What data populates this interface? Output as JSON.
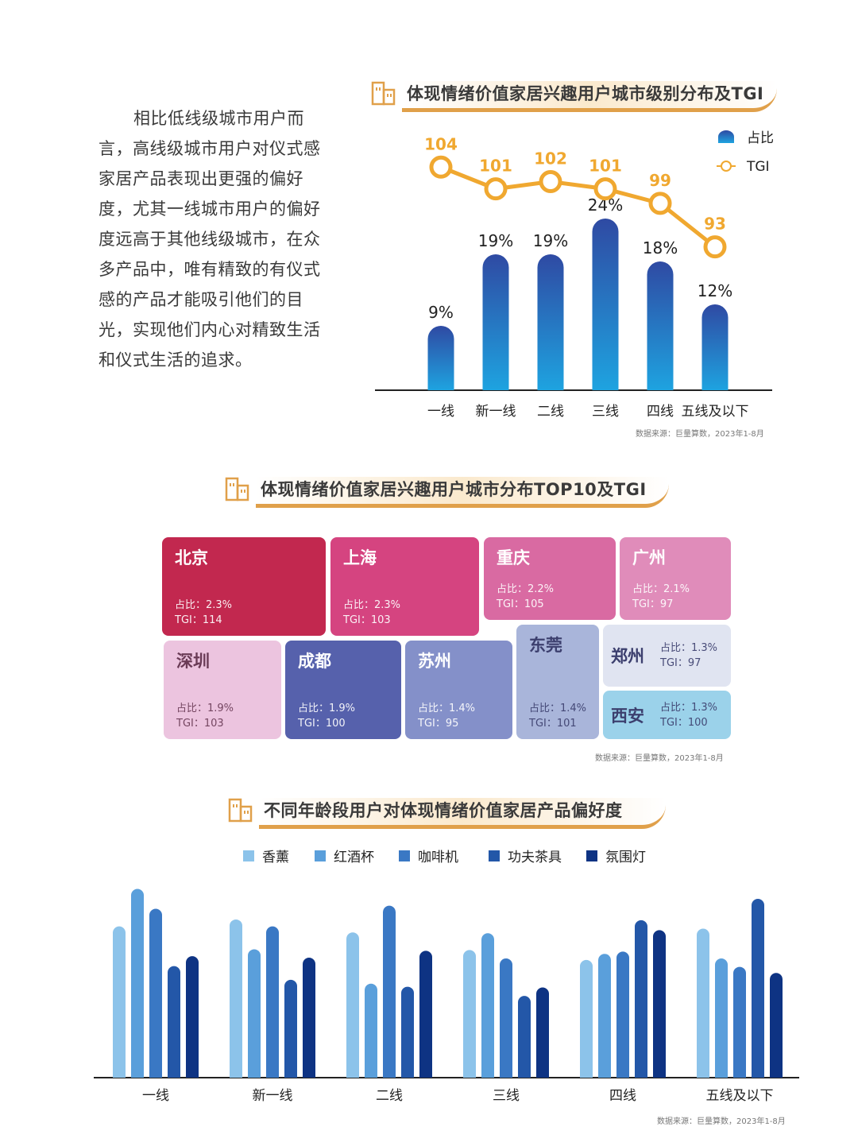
{
  "intro_text": "相比低线级城市用户而言，高线级城市用户对仪式感家居产品表现出更强的偏好度，尤其一线城市用户的偏好度远高于其他线级城市，在众多产品中，唯有精致的有仪式感的产品才能吸引他们的目光，实现他们内心对精致生活和仪式生活的追求。",
  "section1": {
    "title": "体现情绪价值家居兴趣用户城市级别分布及TGI",
    "source": "数据来源：巨量算数，2023年1-8月"
  },
  "section2": {
    "title": "体现情绪价值家居兴趣用户城市分布TOP10及TGI",
    "source": "数据来源：巨量算数，2023年1-8月"
  },
  "section3": {
    "title": "不同年龄段用户对体现情绪价值家居产品偏好度",
    "source": "数据来源：巨量算数，2023年1-8月"
  },
  "colors": {
    "bar_top": "#2f4aa3",
    "bar_bottom": "#1ea3e0",
    "tgi_line": "#f0a830",
    "accent": "#e0a04a",
    "series": [
      "#8cc3ea",
      "#5a9fdb",
      "#3a78c4",
      "#2357a8",
      "#0e3383"
    ]
  },
  "chart_data": [
    {
      "type": "bar",
      "title": "体现情绪价值家居兴趣用户城市级别分布及TGI",
      "categories": [
        "一线",
        "新一线",
        "二线",
        "三线",
        "四线",
        "五线及以下"
      ],
      "series": [
        {
          "name": "占比",
          "values": [
            9,
            19,
            19,
            24,
            18,
            12
          ],
          "labels": [
            "9%",
            "19%",
            "19%",
            "24%",
            "18%",
            "12%"
          ]
        },
        {
          "name": "TGI",
          "type": "line",
          "values": [
            104,
            101,
            102,
            101,
            99,
            93
          ],
          "labels": [
            "104",
            "101",
            "102",
            "101",
            "99",
            "93"
          ]
        }
      ],
      "ylim": [
        0,
        30
      ],
      "tgi_range": [
        90,
        106
      ],
      "legend": [
        "占比",
        "TGI"
      ],
      "legend_position": "top-right"
    },
    {
      "type": "treemap",
      "title": "体现情绪价值家居兴趣用户城市分布TOP10及TGI",
      "items": [
        {
          "city": "北京",
          "share": "占比：2.3%",
          "tgi": "TGI：114",
          "color": "#c2284f"
        },
        {
          "city": "上海",
          "share": "占比：2.3%",
          "tgi": "TGI：103",
          "color": "#d54480"
        },
        {
          "city": "重庆",
          "share": "占比：2.2%",
          "tgi": "TGI：105",
          "color": "#d96aa2"
        },
        {
          "city": "广州",
          "share": "占比：2.1%",
          "tgi": "TGI：97",
          "color": "#e08cba"
        },
        {
          "city": "深圳",
          "share": "占比：1.9%",
          "tgi": "TGI：103",
          "color": "#ecc4df",
          "dark": true
        },
        {
          "city": "成都",
          "share": "占比：1.9%",
          "tgi": "TGI：100",
          "color": "#5661ac"
        },
        {
          "city": "苏州",
          "share": "占比：1.4%",
          "tgi": "TGI：95",
          "color": "#8490c9"
        },
        {
          "city": "东莞",
          "share": "占比：1.4%",
          "tgi": "TGI：101",
          "color": "#a9b5da",
          "dark": true
        },
        {
          "city": "郑州",
          "share": "占比：1.3%",
          "tgi": "TGI：97",
          "color": "#e0e4f1",
          "dark": true
        },
        {
          "city": "西安",
          "share": "占比：1.3%",
          "tgi": "TGI：100",
          "color": "#9bd2ea",
          "dark": true
        }
      ]
    },
    {
      "type": "bar",
      "title": "不同年龄段用户对体现情绪价值家居产品偏好度",
      "categories": [
        "一线",
        "新一线",
        "二线",
        "三线",
        "四线",
        "五线及以下"
      ],
      "series": [
        {
          "name": "香薰",
          "values": [
            198,
            207,
            190,
            167,
            154,
            195
          ]
        },
        {
          "name": "红酒杯",
          "values": [
            247,
            168,
            123,
            189,
            162,
            156
          ]
        },
        {
          "name": "咖啡机",
          "values": [
            221,
            198,
            225,
            156,
            165,
            145
          ]
        },
        {
          "name": "功夫茶具",
          "values": [
            146,
            128,
            119,
            107,
            206,
            234
          ]
        },
        {
          "name": "氛围灯",
          "values": [
            159,
            157,
            166,
            118,
            193,
            137
          ]
        }
      ],
      "ylim": [
        0,
        260
      ],
      "legend_position": "top"
    }
  ]
}
